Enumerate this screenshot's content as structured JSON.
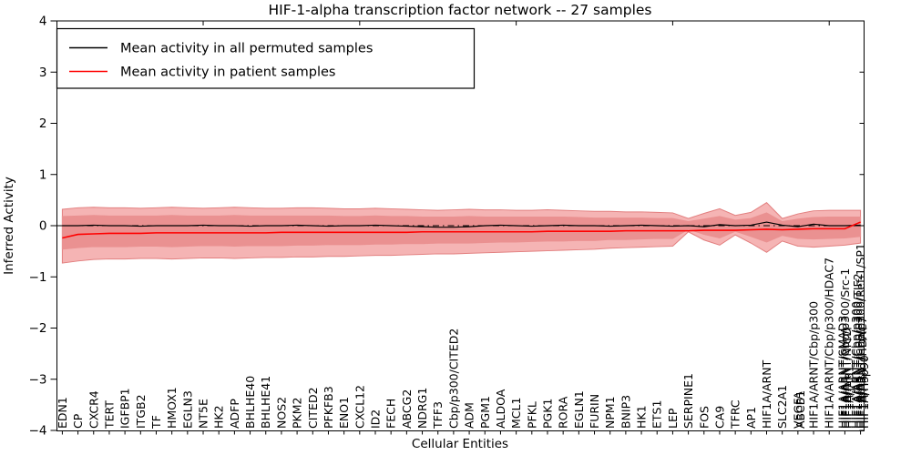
{
  "chart_data": {
    "type": "line",
    "title": "HIF-1-alpha transcription factor network -- 27 samples",
    "xlabel": "Cellular Entities",
    "ylabel": "Inferred Activity",
    "ylim": [
      -4,
      4
    ],
    "yticks": [
      "4",
      "3",
      "2",
      "1",
      "0",
      "−1",
      "−2",
      "−3",
      "−4"
    ],
    "grid": false,
    "legend_position": "upper left",
    "zero_line": {
      "y": 0,
      "style": "dash-dot",
      "color": "#000000"
    },
    "categories": [
      "EDN1",
      "CP",
      "CXCR4",
      "TERT",
      "IGFBP1",
      "ITGB2",
      "TF",
      "HMOX1",
      "EGLN3",
      "NT5E",
      "HK2",
      "ADFP",
      "BHLHE40",
      "BHLHE41",
      "NOS2",
      "PKM2",
      "CITED2",
      "PFKFB3",
      "ENO1",
      "CXCL12",
      "ID2",
      "FECH",
      "ABCG2",
      "NDRG1",
      "TFF3",
      "Cbp/p300/CITED2",
      "ADM",
      "PGM1",
      "ALDOA",
      "MCL1",
      "PFKL",
      "PGK1",
      "RORA",
      "EGLN1",
      "FURIN",
      "NPM1",
      "BNIP3",
      "HK1",
      "ETS1",
      "LEP",
      "SERPINE1",
      "FOS",
      "CA9",
      "TFRC",
      "AP1",
      "HIF1A/ARNT",
      "SLC2A1",
      "VEGFA",
      "HIF1A/ARNT/Cbp/p300",
      "HIF1A/ARNT/Cbp/p300/HDAC7",
      "HIF1A/ARNT/Cbp/p300/Src-1",
      "HIF1A/ARNT/Cbp/p300/Ref-1/SP1"
    ],
    "extra_overlapping_labels": [
      {
        "x_index": 47,
        "label": "ABCB1",
        "dx": 2.5
      },
      {
        "x_index": 50,
        "label": "HIF1A/ARNT/SMAD3",
        "dx": -2.5
      },
      {
        "x_index": 50,
        "label": "HIF1A/ARNT/NICD",
        "dx": 2
      },
      {
        "x_index": 50,
        "label": "HIF1A/JAB1",
        "dx": 4.5
      },
      {
        "x_index": 51,
        "label": "HIF1A/ARNT/Cbp/p300",
        "dx": -5
      },
      {
        "x_index": 51,
        "label": "HIF1A/ARNT/Cbp/p300/TIF2",
        "dx": -3
      },
      {
        "x_index": 51,
        "label": "HIF1A/ARNT/HDAC7",
        "dx": 2
      },
      {
        "x_index": 51,
        "label": "HIF1A/Hsp90",
        "dx": 4
      }
    ],
    "series": [
      {
        "name": "Mean activity in all permuted samples",
        "color": "#000000",
        "values": [
          0.0,
          0.0,
          0.01,
          0.0,
          0.0,
          -0.01,
          0.0,
          0.0,
          0.0,
          0.01,
          0.0,
          0.0,
          -0.01,
          0.0,
          0.0,
          0.01,
          0.0,
          -0.01,
          0.0,
          0.0,
          0.01,
          0.0,
          -0.01,
          -0.02,
          -0.03,
          -0.03,
          -0.02,
          0.0,
          0.01,
          0.0,
          -0.01,
          0.0,
          0.01,
          0.0,
          0.0,
          -0.01,
          0.0,
          0.01,
          0.0,
          -0.01,
          0.0,
          -0.02,
          0.02,
          0.0,
          0.01,
          0.07,
          0.01,
          -0.02,
          0.03,
          0.0,
          0.0,
          0.01
        ]
      },
      {
        "name": "Mean activity in patient samples",
        "color": "#ff0000",
        "values": [
          -0.24,
          -0.17,
          -0.16,
          -0.15,
          -0.15,
          -0.15,
          -0.14,
          -0.14,
          -0.14,
          -0.14,
          -0.14,
          -0.14,
          -0.14,
          -0.14,
          -0.13,
          -0.13,
          -0.13,
          -0.13,
          -0.13,
          -0.13,
          -0.13,
          -0.13,
          -0.13,
          -0.12,
          -0.12,
          -0.12,
          -0.12,
          -0.12,
          -0.12,
          -0.12,
          -0.12,
          -0.11,
          -0.11,
          -0.11,
          -0.11,
          -0.11,
          -0.1,
          -0.1,
          -0.1,
          -0.1,
          -0.1,
          -0.09,
          -0.09,
          -0.09,
          -0.08,
          -0.07,
          -0.08,
          -0.07,
          -0.06,
          -0.06,
          -0.06,
          0.07
        ]
      }
    ],
    "bands": [
      {
        "name": "outer",
        "color": "#f5b4b4",
        "edge_color": "#e27f7f",
        "upper": [
          0.32,
          0.35,
          0.36,
          0.35,
          0.35,
          0.34,
          0.35,
          0.36,
          0.35,
          0.34,
          0.35,
          0.36,
          0.35,
          0.34,
          0.34,
          0.35,
          0.35,
          0.34,
          0.33,
          0.33,
          0.34,
          0.33,
          0.32,
          0.31,
          0.3,
          0.31,
          0.32,
          0.31,
          0.31,
          0.3,
          0.3,
          0.31,
          0.3,
          0.29,
          0.28,
          0.28,
          0.27,
          0.27,
          0.26,
          0.25,
          0.14,
          0.24,
          0.33,
          0.2,
          0.26,
          0.45,
          0.14,
          0.23,
          0.29,
          0.3,
          0.3,
          0.3
        ],
        "lower": [
          -0.73,
          -0.69,
          -0.66,
          -0.65,
          -0.65,
          -0.64,
          -0.64,
          -0.65,
          -0.64,
          -0.63,
          -0.63,
          -0.64,
          -0.63,
          -0.62,
          -0.62,
          -0.61,
          -0.61,
          -0.6,
          -0.6,
          -0.59,
          -0.58,
          -0.58,
          -0.57,
          -0.56,
          -0.55,
          -0.55,
          -0.54,
          -0.53,
          -0.52,
          -0.51,
          -0.5,
          -0.49,
          -0.48,
          -0.47,
          -0.46,
          -0.44,
          -0.43,
          -0.42,
          -0.41,
          -0.4,
          -0.12,
          -0.28,
          -0.38,
          -0.18,
          -0.34,
          -0.52,
          -0.3,
          -0.4,
          -0.42,
          -0.4,
          -0.38,
          -0.34
        ]
      },
      {
        "name": "inner",
        "color": "#ea9191",
        "edge_color": "#ea9191",
        "upper": [
          0.18,
          0.19,
          0.2,
          0.19,
          0.19,
          0.19,
          0.19,
          0.2,
          0.19,
          0.19,
          0.19,
          0.2,
          0.19,
          0.19,
          0.19,
          0.19,
          0.19,
          0.19,
          0.18,
          0.18,
          0.19,
          0.18,
          0.18,
          0.17,
          0.17,
          0.17,
          0.18,
          0.17,
          0.17,
          0.17,
          0.17,
          0.17,
          0.17,
          0.16,
          0.15,
          0.15,
          0.15,
          0.15,
          0.14,
          0.14,
          0.08,
          0.13,
          0.18,
          0.11,
          0.14,
          0.25,
          0.08,
          0.13,
          0.16,
          0.17,
          0.17,
          0.17
        ],
        "lower": [
          -0.46,
          -0.43,
          -0.41,
          -0.41,
          -0.41,
          -0.4,
          -0.4,
          -0.41,
          -0.4,
          -0.39,
          -0.39,
          -0.4,
          -0.39,
          -0.39,
          -0.39,
          -0.38,
          -0.38,
          -0.37,
          -0.37,
          -0.37,
          -0.36,
          -0.36,
          -0.35,
          -0.35,
          -0.34,
          -0.34,
          -0.34,
          -0.33,
          -0.32,
          -0.32,
          -0.31,
          -0.3,
          -0.3,
          -0.29,
          -0.29,
          -0.27,
          -0.27,
          -0.26,
          -0.25,
          -0.25,
          -0.07,
          -0.17,
          -0.24,
          -0.11,
          -0.21,
          -0.32,
          -0.19,
          -0.25,
          -0.26,
          -0.25,
          -0.24,
          -0.21
        ]
      }
    ]
  }
}
